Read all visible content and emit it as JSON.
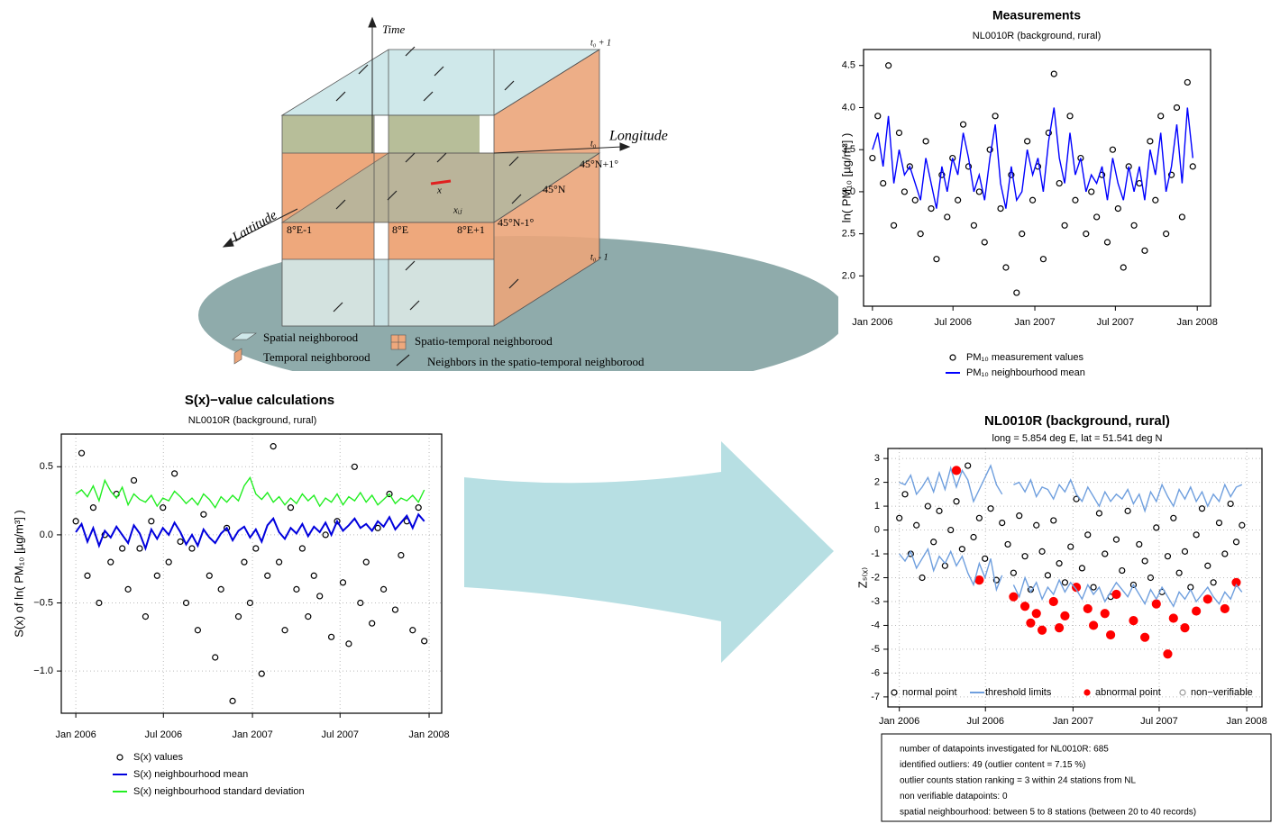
{
  "diagram": {
    "axes": [
      "Time",
      "Longitude",
      "Lattitude"
    ],
    "time_labels": [
      "t₀ + 1",
      "t₀",
      "t₀ - 1"
    ],
    "grid_labels": [
      "8°E-1",
      "8°E",
      "8°E+1",
      "45°N+1°",
      "45°N",
      "45°N-1°"
    ],
    "points": [
      "x",
      "xᵢⱼ"
    ],
    "legend": [
      "Spatial neighborood",
      "Temporal neighborood",
      "Spatio-temporal neighborood",
      "Neighbors in the spatio-temporal neighborood"
    ]
  },
  "chart_data": [
    {
      "type": "scatter",
      "title": "Measurements",
      "subtitle": "NL0010R (background, rural)",
      "y_label": "ln( PM₁₀ [µg/m³] )",
      "x": [
        0,
        12,
        24,
        36,
        48,
        60,
        72,
        84,
        96,
        108,
        120,
        132,
        144,
        156,
        168,
        180,
        192,
        204,
        216,
        228,
        240,
        252,
        264,
        276,
        288,
        300,
        312,
        324,
        336,
        348,
        360,
        372,
        384,
        396,
        408,
        420,
        432,
        444,
        456,
        468,
        480,
        492,
        504,
        516,
        528,
        540,
        552,
        564,
        576,
        588,
        600,
        612,
        624,
        636,
        648,
        660,
        672,
        684,
        696,
        708,
        720
      ],
      "xlim": [
        -20,
        760
      ],
      "xticks": [
        {
          "value": 0,
          "label": "Jan 2006"
        },
        {
          "value": 181,
          "label": "Jul 2006"
        },
        {
          "value": 365,
          "label": "Jan 2007"
        },
        {
          "value": 546,
          "label": "Jul 2007"
        },
        {
          "value": 730,
          "label": "Jan 2008"
        }
      ],
      "ylim": [
        1.64,
        4.69
      ],
      "yticks": [
        {
          "value": 2,
          "label": "2.0"
        },
        2.5,
        {
          "value": 3,
          "label": "3.0"
        },
        3.5,
        {
          "value": 4,
          "label": "4.0"
        },
        4.5
      ],
      "grid": false,
      "legend": "below",
      "series": [
        {
          "name": "PM₁₀ measurement values",
          "color": "#000000",
          "mode": "markers",
          "marker": "open",
          "values": [
            3.4,
            3.9,
            3.1,
            4.5,
            2.6,
            3.7,
            3.0,
            3.3,
            2.9,
            2.5,
            3.6,
            2.8,
            2.2,
            3.2,
            2.7,
            3.4,
            2.9,
            3.8,
            3.3,
            2.6,
            3.0,
            2.4,
            3.5,
            3.9,
            2.8,
            2.1,
            3.2,
            1.8,
            2.5,
            3.6,
            2.9,
            3.3,
            2.2,
            3.7,
            4.4,
            3.1,
            2.6,
            3.9,
            2.9,
            3.4,
            2.5,
            3.0,
            2.7,
            3.2,
            2.4,
            3.5,
            2.8,
            2.1,
            3.3,
            2.6,
            3.1,
            2.3,
            3.6,
            2.9,
            3.9,
            2.5,
            3.2,
            4.0,
            2.7,
            4.3,
            3.3
          ]
        },
        {
          "name": "PM₁₀ neighbourhood mean",
          "color": "#0000ff",
          "mode": "lines",
          "values": [
            3.5,
            3.7,
            3.3,
            3.9,
            3.1,
            3.5,
            3.2,
            3.3,
            3.1,
            2.9,
            3.4,
            3.1,
            2.8,
            3.3,
            3.0,
            3.4,
            3.2,
            3.7,
            3.4,
            3.0,
            3.2,
            2.9,
            3.4,
            3.8,
            3.1,
            2.8,
            3.3,
            2.9,
            3.0,
            3.5,
            3.2,
            3.4,
            3.0,
            3.6,
            4.0,
            3.4,
            3.1,
            3.7,
            3.2,
            3.4,
            3.0,
            3.2,
            3.1,
            3.3,
            2.9,
            3.4,
            3.1,
            2.9,
            3.3,
            3.0,
            3.3,
            2.9,
            3.5,
            3.2,
            3.7,
            3.0,
            3.3,
            3.8,
            3.1,
            4.0,
            3.4
          ]
        }
      ]
    },
    {
      "type": "scatter",
      "title": "S(x)−value calculations",
      "subtitle": "NL0010R (background, rural)",
      "y_label": "S(x) of ln( PM₁₀ [µg/m³] )",
      "x": [
        0,
        12,
        24,
        36,
        48,
        60,
        72,
        84,
        96,
        108,
        120,
        132,
        144,
        156,
        168,
        180,
        192,
        204,
        216,
        228,
        240,
        252,
        264,
        276,
        288,
        300,
        312,
        324,
        336,
        348,
        360,
        372,
        384,
        396,
        408,
        420,
        432,
        444,
        456,
        468,
        480,
        492,
        504,
        516,
        528,
        540,
        552,
        564,
        576,
        588,
        600,
        612,
        624,
        636,
        648,
        660,
        672,
        684,
        696,
        708,
        720
      ],
      "xlim": [
        -30,
        756
      ],
      "xticks": [
        {
          "value": 0,
          "label": "Jan 2006"
        },
        {
          "value": 181,
          "label": "Jul 2006"
        },
        {
          "value": 365,
          "label": "Jan 2007"
        },
        {
          "value": 546,
          "label": "Jul 2007"
        },
        {
          "value": 730,
          "label": "Jan 2008"
        }
      ],
      "ylim": [
        -1.31,
        0.74
      ],
      "yticks": [
        {
          "value": -1,
          "label": "−1.0"
        },
        {
          "value": -0.5,
          "label": "−0.5"
        },
        {
          "value": 0,
          "label": "0.0"
        },
        0.5
      ],
      "grid": true,
      "legend": "below",
      "series": [
        {
          "name": "S(x) values",
          "color": "#000000",
          "mode": "markers",
          "marker": "open",
          "values": [
            0.1,
            0.6,
            -0.3,
            0.2,
            -0.5,
            0.0,
            -0.2,
            0.3,
            -0.1,
            -0.4,
            0.4,
            -0.1,
            -0.6,
            0.1,
            -0.3,
            0.2,
            -0.2,
            0.45,
            -0.05,
            -0.5,
            -0.1,
            -0.7,
            0.15,
            -0.3,
            -0.9,
            -0.4,
            0.05,
            -1.22,
            -0.6,
            -0.2,
            -0.5,
            -0.1,
            -1.02,
            -0.3,
            0.65,
            -0.2,
            -0.7,
            0.2,
            -0.4,
            -0.1,
            -0.6,
            -0.3,
            -0.45,
            0.0,
            -0.75,
            0.1,
            -0.35,
            -0.8,
            0.5,
            -0.5,
            -0.2,
            -0.65,
            0.05,
            -0.4,
            0.3,
            -0.55,
            -0.15,
            0.1,
            -0.7,
            0.2,
            -0.78
          ]
        },
        {
          "name": "S(x) neighbourhood mean",
          "color": "#0000dd",
          "mode": "lines",
          "values": [
            0.02,
            0.08,
            -0.05,
            0.05,
            -0.08,
            0.03,
            -0.02,
            0.06,
            0.0,
            -0.06,
            0.07,
            0.01,
            -0.1,
            0.04,
            -0.03,
            0.05,
            0.0,
            0.09,
            0.02,
            -0.07,
            0.0,
            -0.08,
            0.04,
            -0.02,
            -0.06,
            0.01,
            0.05,
            -0.04,
            0.03,
            0.06,
            -0.02,
            0.04,
            -0.05,
            0.07,
            0.12,
            0.02,
            -0.03,
            0.05,
            0.01,
            0.08,
            -0.01,
            0.06,
            0.02,
            0.09,
            0.0,
            0.1,
            0.03,
            0.07,
            0.12,
            0.05,
            0.08,
            0.03,
            0.1,
            0.06,
            0.13,
            0.04,
            0.09,
            0.14,
            0.05,
            0.15,
            0.1
          ]
        },
        {
          "name": "S(x) neighbourhood standard deviation",
          "color": "#22ee22",
          "mode": "lines",
          "values": [
            0.3,
            0.33,
            0.28,
            0.36,
            0.25,
            0.4,
            0.32,
            0.27,
            0.35,
            0.22,
            0.3,
            0.26,
            0.24,
            0.29,
            0.21,
            0.27,
            0.25,
            0.32,
            0.28,
            0.23,
            0.27,
            0.22,
            0.3,
            0.26,
            0.2,
            0.28,
            0.24,
            0.29,
            0.25,
            0.36,
            0.42,
            0.3,
            0.26,
            0.31,
            0.24,
            0.28,
            0.22,
            0.27,
            0.23,
            0.3,
            0.25,
            0.29,
            0.21,
            0.27,
            0.24,
            0.3,
            0.22,
            0.28,
            0.25,
            0.31,
            0.24,
            0.29,
            0.22,
            0.26,
            0.3,
            0.23,
            0.27,
            0.25,
            0.29,
            0.24,
            0.33
          ]
        }
      ]
    },
    {
      "type": "scatter",
      "title": "NL0010R (background, rural)",
      "subtitle": "long = 5.854 deg E, lat = 51.541 deg N",
      "y_label": "Zₛ₍ₓ₎",
      "x": [
        0,
        12,
        24,
        36,
        48,
        60,
        72,
        84,
        96,
        108,
        120,
        132,
        144,
        156,
        168,
        180,
        192,
        204,
        216,
        228,
        240,
        252,
        264,
        276,
        288,
        300,
        312,
        324,
        336,
        348,
        360,
        372,
        384,
        396,
        408,
        420,
        432,
        444,
        456,
        468,
        480,
        492,
        504,
        516,
        528,
        540,
        552,
        564,
        576,
        588,
        600,
        612,
        624,
        636,
        648,
        660,
        672,
        684,
        696,
        708,
        720
      ],
      "xlim": [
        -24,
        762
      ],
      "xticks": [
        {
          "value": 0,
          "label": "Jan 2006"
        },
        {
          "value": 181,
          "label": "Jul 2006"
        },
        {
          "value": 365,
          "label": "Jan 2007"
        },
        {
          "value": 546,
          "label": "Jul 2007"
        },
        {
          "value": 730,
          "label": "Jan 2008"
        }
      ],
      "ylim": [
        -7.42,
        3.42
      ],
      "yticks": [
        -7,
        -6,
        -5,
        -4,
        -3,
        -2,
        -1,
        0,
        1,
        2,
        3
      ],
      "grid": true,
      "legend": "inside-bottom",
      "info": [
        "number of datapoints investigated for NL0010R: 685",
        "identified outliers: 49 (outlier content =  7.15 %)",
        "outlier counts station ranking = 3 within 24 stations from NL",
        "non verifiable datapoints: 0",
        "spatial neighbourhood: between 5 to 8 stations (between 20 to 40 records)"
      ],
      "series": [
        {
          "name": "normal point",
          "color": "#000000",
          "mode": "markers",
          "marker": "open",
          "values": [
            0.5,
            1.5,
            -1.0,
            0.2,
            -2.0,
            1.0,
            -0.5,
            0.8,
            -1.5,
            0.0,
            1.2,
            -0.8,
            2.7,
            -0.3,
            0.5,
            -1.2,
            0.9,
            -2.1,
            0.3,
            -0.6,
            -1.8,
            0.6,
            -1.1,
            -2.5,
            0.2,
            -0.9,
            -1.9,
            0.4,
            -1.4,
            -2.2,
            -0.7,
            1.3,
            -1.6,
            -0.2,
            -2.4,
            0.7,
            -1.0,
            -2.8,
            -0.4,
            -1.7,
            0.8,
            -2.3,
            -0.6,
            -1.3,
            -2.0,
            0.1,
            -2.6,
            -1.1,
            0.5,
            -1.8,
            -0.9,
            -2.4,
            -0.2,
            0.9,
            -1.5,
            -2.2,
            0.3,
            -1.0,
            1.1,
            -0.5,
            0.2
          ]
        },
        {
          "name": "threshold limits",
          "color": "#6f9fde",
          "mode": "lines",
          "values": [
            2.0,
            1.9,
            2.3,
            1.5,
            1.8,
            2.2,
            1.6,
            2.4,
            1.7,
            2.6,
            1.8,
            2.5,
            2.1,
            1.2,
            1.7,
            2.2,
            2.7,
            1.9,
            1.5,
            null,
            1.9,
            2.0,
            1.6,
            2.1,
            1.4,
            1.8,
            1.7,
            1.3,
            1.9,
            1.6,
            2.1,
            1.5,
            1.2,
            1.8,
            1.4,
            1.0,
            1.6,
            1.2,
            1.5,
            1.3,
            1.7,
            1.1,
            1.5,
            0.8,
            1.6,
            1.2,
            1.9,
            1.4,
            1.0,
            1.7,
            1.3,
            1.8,
            1.2,
            1.6,
            1.0,
            1.5,
            1.2,
            1.9,
            1.4,
            1.8,
            1.9
          ]
        },
        {
          "name": "abnormal point",
          "color": "#ff0000",
          "mode": "markers",
          "marker": "filled",
          "values": [
            null,
            null,
            null,
            null,
            null,
            null,
            null,
            null,
            null,
            null,
            2.5,
            null,
            null,
            null,
            -2.1,
            null,
            null,
            null,
            null,
            null,
            -2.8,
            null,
            -3.2,
            -3.9,
            -3.5,
            -4.2,
            null,
            -3.0,
            -4.1,
            -3.6,
            null,
            -2.4,
            null,
            -3.3,
            -4.0,
            null,
            -3.5,
            -4.4,
            -2.7,
            null,
            null,
            -3.8,
            null,
            -4.5,
            null,
            -3.1,
            null,
            -5.2,
            -3.7,
            null,
            -4.1,
            null,
            -3.4,
            null,
            -2.9,
            null,
            null,
            -3.3,
            null,
            -2.2,
            null
          ]
        },
        {
          "name": "non−verifiable",
          "color": "#999999",
          "mode": "markers",
          "marker": "open",
          "values": [
            null,
            null,
            null,
            null,
            null,
            null,
            null,
            null,
            null,
            null,
            null,
            null,
            null,
            null,
            null,
            null,
            null,
            null,
            null,
            null,
            null,
            null,
            null,
            null,
            null,
            null,
            null,
            null,
            null,
            null,
            null,
            null,
            null,
            null,
            null,
            null,
            null,
            null,
            null,
            null,
            null,
            null,
            null,
            null,
            null,
            null,
            null,
            null,
            null,
            null,
            null,
            null,
            null,
            null,
            null,
            null,
            null,
            null,
            null,
            null,
            null
          ]
        },
        {
          "color": "#6f9fde",
          "mode": "lines",
          "values": [
            -1.0,
            -1.3,
            -0.9,
            -1.6,
            -1.2,
            -0.8,
            -1.7,
            -1.1,
            -1.4,
            -0.9,
            -1.5,
            -1.1,
            -1.8,
            -2.3,
            -1.4,
            -2.0,
            -1.2,
            -2.5,
            -1.9,
            null,
            -2.3,
            -2.8,
            -2.0,
            -2.6,
            -2.2,
            -2.9,
            -2.4,
            -2.7,
            -2.1,
            -2.6,
            -2.2,
            -2.5,
            -2.9,
            -2.3,
            -2.7,
            -2.4,
            -3.0,
            -2.6,
            -2.2,
            -2.5,
            -2.8,
            -2.3,
            -2.7,
            -3.1,
            -2.5,
            -2.9,
            -2.4,
            -2.8,
            -3.2,
            -2.6,
            -2.9,
            -2.5,
            -3.0,
            -2.7,
            -2.4,
            -2.8,
            -3.1,
            -2.6,
            -2.9,
            -2.3,
            -2.6
          ]
        }
      ]
    }
  ]
}
